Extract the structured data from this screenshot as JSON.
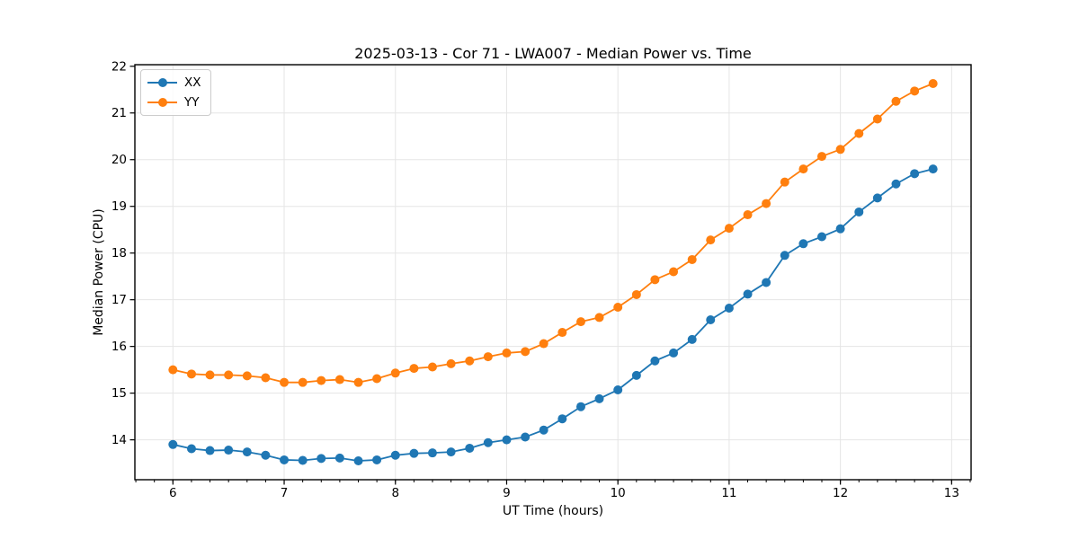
{
  "figure": {
    "background": "#ffffff",
    "text_color": "#000000",
    "grid_color": "#e5e5e5",
    "spine_color": "#000000"
  },
  "chart_data": {
    "type": "line",
    "title": "2025-03-13 - Cor 71 - LWA007 - Median Power vs. Time",
    "xlabel": "UT Time (hours)",
    "ylabel": "Median Power (CPU)",
    "xlim": [
      5.658,
      13.175
    ],
    "ylim": [
      13.146,
      22.034
    ],
    "xticks": [
      6,
      7,
      8,
      9,
      10,
      11,
      12,
      13
    ],
    "yticks": [
      14,
      15,
      16,
      17,
      18,
      19,
      20,
      21,
      22
    ],
    "x_minor_tick_interval": 0.166667,
    "grid": true,
    "legend_position": "upper-left",
    "x": [
      6,
      6.167,
      6.333,
      6.5,
      6.667,
      6.833,
      7,
      7.167,
      7.333,
      7.5,
      7.667,
      7.833,
      8,
      8.167,
      8.333,
      8.5,
      8.667,
      8.833,
      9,
      9.167,
      9.333,
      9.5,
      9.667,
      9.833,
      10,
      10.167,
      10.333,
      10.5,
      10.667,
      10.833,
      11,
      11.167,
      11.333,
      11.5,
      11.667,
      11.833,
      12,
      12.167,
      12.333,
      12.5,
      12.667,
      12.833
    ],
    "series": [
      {
        "name": "XX",
        "color": "#1f77b4",
        "values": [
          13.9,
          13.81,
          13.77,
          13.78,
          13.74,
          13.67,
          13.57,
          13.56,
          13.6,
          13.61,
          13.55,
          13.57,
          13.67,
          13.71,
          13.72,
          13.74,
          13.82,
          13.94,
          14.0,
          14.06,
          14.21,
          14.45,
          14.71,
          14.88,
          15.07,
          15.38,
          15.69,
          15.86,
          16.15,
          16.57,
          16.82,
          17.12,
          17.37,
          17.95,
          18.2,
          18.35,
          18.52,
          18.88,
          19.18,
          19.48,
          19.7,
          19.8
        ]
      },
      {
        "name": "YY",
        "color": "#ff7f0e",
        "values": [
          15.5,
          15.41,
          15.39,
          15.39,
          15.37,
          15.33,
          15.23,
          15.23,
          15.27,
          15.29,
          15.23,
          15.31,
          15.43,
          15.53,
          15.56,
          15.63,
          15.69,
          15.78,
          15.86,
          15.89,
          16.06,
          16.3,
          16.53,
          16.62,
          16.84,
          17.11,
          17.43,
          17.6,
          17.86,
          18.28,
          18.53,
          18.82,
          19.06,
          19.52,
          19.8,
          20.07,
          20.22,
          20.56,
          20.87,
          21.25,
          21.47,
          21.63
        ]
      }
    ]
  }
}
